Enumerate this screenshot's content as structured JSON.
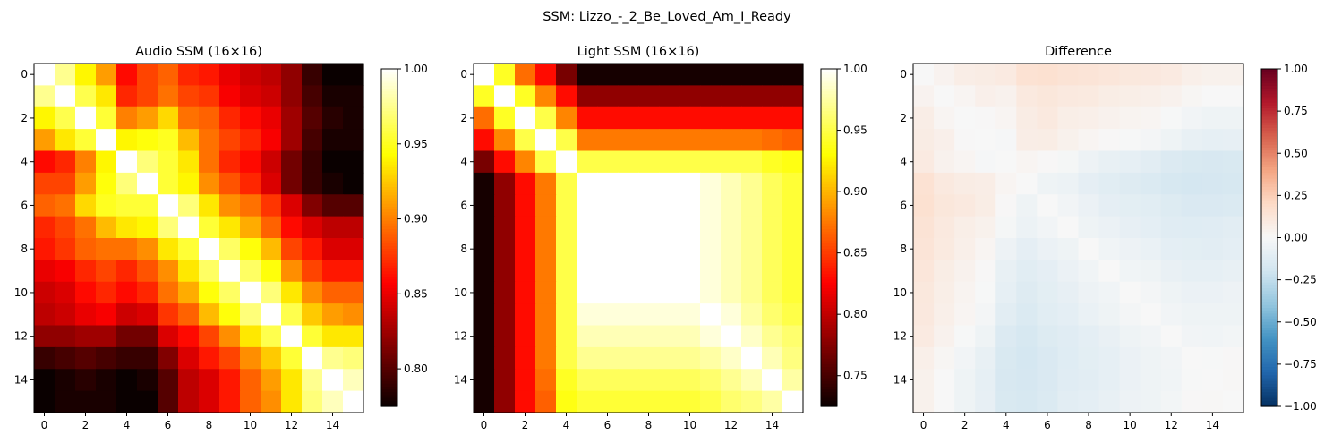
{
  "figure": {
    "suptitle": "SSM: Lizzo_-_2_Be_Loved_Am_I_Ready"
  },
  "chart_data": [
    {
      "type": "heatmap",
      "title": "Audio SSM (16×16)",
      "colormap": "hot",
      "vmin": 0.775,
      "vmax": 1.0,
      "x_ticks": [
        "0",
        "2",
        "4",
        "6",
        "8",
        "10",
        "12",
        "14"
      ],
      "y_ticks": [
        "0",
        "2",
        "4",
        "6",
        "8",
        "10",
        "12",
        "14"
      ],
      "colorbar_ticks": [
        "0.80",
        "0.85",
        "0.90",
        "0.95",
        "1.00"
      ],
      "values": [
        [
          1.0,
          0.975,
          0.94,
          0.91,
          0.86,
          0.88,
          0.89,
          0.87,
          0.865,
          0.85,
          0.84,
          0.835,
          0.82,
          0.79,
          0.775,
          0.775
        ],
        [
          0.975,
          1.0,
          0.96,
          0.935,
          0.87,
          0.88,
          0.895,
          0.88,
          0.875,
          0.855,
          0.845,
          0.84,
          0.82,
          0.795,
          0.78,
          0.78
        ],
        [
          0.94,
          0.96,
          1.0,
          0.955,
          0.9,
          0.91,
          0.93,
          0.895,
          0.89,
          0.87,
          0.86,
          0.85,
          0.825,
          0.8,
          0.785,
          0.78
        ],
        [
          0.91,
          0.935,
          0.955,
          1.0,
          0.94,
          0.945,
          0.95,
          0.92,
          0.895,
          0.88,
          0.87,
          0.855,
          0.825,
          0.795,
          0.78,
          0.78
        ],
        [
          0.86,
          0.87,
          0.9,
          0.94,
          1.0,
          0.97,
          0.955,
          0.935,
          0.895,
          0.87,
          0.86,
          0.84,
          0.81,
          0.79,
          0.775,
          0.775
        ],
        [
          0.88,
          0.88,
          0.91,
          0.945,
          0.97,
          1.0,
          0.955,
          0.94,
          0.905,
          0.885,
          0.87,
          0.845,
          0.81,
          0.79,
          0.78,
          0.775
        ],
        [
          0.89,
          0.895,
          0.93,
          0.95,
          0.955,
          0.955,
          1.0,
          0.97,
          0.935,
          0.905,
          0.895,
          0.875,
          0.845,
          0.815,
          0.8,
          0.8
        ],
        [
          0.87,
          0.88,
          0.895,
          0.92,
          0.935,
          0.94,
          0.97,
          1.0,
          0.955,
          0.935,
          0.915,
          0.89,
          0.86,
          0.845,
          0.835,
          0.835
        ],
        [
          0.865,
          0.875,
          0.89,
          0.895,
          0.895,
          0.905,
          0.935,
          0.955,
          1.0,
          0.965,
          0.945,
          0.92,
          0.88,
          0.865,
          0.845,
          0.845
        ],
        [
          0.85,
          0.855,
          0.87,
          0.88,
          0.87,
          0.885,
          0.905,
          0.935,
          0.965,
          1.0,
          0.965,
          0.945,
          0.905,
          0.88,
          0.865,
          0.865
        ],
        [
          0.84,
          0.845,
          0.86,
          0.87,
          0.86,
          0.87,
          0.895,
          0.915,
          0.945,
          0.965,
          1.0,
          0.97,
          0.935,
          0.905,
          0.89,
          0.89
        ],
        [
          0.835,
          0.84,
          0.85,
          0.855,
          0.84,
          0.845,
          0.875,
          0.89,
          0.92,
          0.945,
          0.97,
          1.0,
          0.96,
          0.925,
          0.91,
          0.905
        ],
        [
          0.82,
          0.82,
          0.825,
          0.825,
          0.81,
          0.81,
          0.845,
          0.86,
          0.88,
          0.905,
          0.935,
          0.96,
          1.0,
          0.955,
          0.935,
          0.935
        ],
        [
          0.79,
          0.795,
          0.8,
          0.795,
          0.79,
          0.79,
          0.815,
          0.845,
          0.865,
          0.88,
          0.905,
          0.925,
          0.955,
          1.0,
          0.975,
          0.97
        ],
        [
          0.775,
          0.78,
          0.785,
          0.78,
          0.775,
          0.78,
          0.8,
          0.835,
          0.845,
          0.865,
          0.89,
          0.91,
          0.935,
          0.975,
          1.0,
          0.985
        ],
        [
          0.775,
          0.78,
          0.78,
          0.78,
          0.775,
          0.775,
          0.8,
          0.835,
          0.845,
          0.865,
          0.89,
          0.905,
          0.935,
          0.97,
          0.985,
          1.0
        ]
      ]
    },
    {
      "type": "heatmap",
      "title": "Light SSM (16×16)",
      "colormap": "hot",
      "vmin": 0.725,
      "vmax": 1.0,
      "x_ticks": [
        "0",
        "2",
        "4",
        "6",
        "8",
        "10",
        "12",
        "14"
      ],
      "y_ticks": [
        "0",
        "2",
        "4",
        "6",
        "8",
        "10",
        "12",
        "14"
      ],
      "colorbar_ticks": [
        "0.75",
        "0.80",
        "0.85",
        "0.90",
        "0.95",
        "1.00"
      ],
      "values": [
        [
          1.0,
          0.94,
          0.87,
          0.83,
          0.77,
          0.73,
          0.73,
          0.73,
          0.73,
          0.73,
          0.73,
          0.73,
          0.73,
          0.73,
          0.73,
          0.73
        ],
        [
          0.94,
          1.0,
          0.94,
          0.88,
          0.83,
          0.78,
          0.78,
          0.78,
          0.78,
          0.78,
          0.78,
          0.78,
          0.78,
          0.78,
          0.78,
          0.78
        ],
        [
          0.87,
          0.94,
          1.0,
          0.95,
          0.88,
          0.83,
          0.83,
          0.83,
          0.83,
          0.83,
          0.83,
          0.83,
          0.83,
          0.83,
          0.83,
          0.83
        ],
        [
          0.83,
          0.88,
          0.95,
          1.0,
          0.95,
          0.875,
          0.875,
          0.875,
          0.875,
          0.875,
          0.875,
          0.875,
          0.875,
          0.875,
          0.87,
          0.865
        ],
        [
          0.77,
          0.83,
          0.88,
          0.95,
          1.0,
          0.95,
          0.95,
          0.95,
          0.95,
          0.95,
          0.95,
          0.95,
          0.95,
          0.95,
          0.94,
          0.935
        ],
        [
          0.73,
          0.78,
          0.83,
          0.875,
          0.95,
          1.0,
          1.0,
          1.0,
          1.0,
          1.0,
          1.0,
          0.99,
          0.98,
          0.97,
          0.955,
          0.945
        ],
        [
          0.73,
          0.78,
          0.83,
          0.875,
          0.95,
          1.0,
          1.0,
          1.0,
          1.0,
          1.0,
          1.0,
          0.99,
          0.98,
          0.97,
          0.955,
          0.945
        ],
        [
          0.73,
          0.78,
          0.83,
          0.875,
          0.95,
          1.0,
          1.0,
          1.0,
          1.0,
          1.0,
          1.0,
          0.99,
          0.98,
          0.97,
          0.955,
          0.945
        ],
        [
          0.73,
          0.78,
          0.83,
          0.875,
          0.95,
          1.0,
          1.0,
          1.0,
          1.0,
          1.0,
          1.0,
          0.99,
          0.98,
          0.97,
          0.955,
          0.945
        ],
        [
          0.73,
          0.78,
          0.83,
          0.875,
          0.95,
          1.0,
          1.0,
          1.0,
          1.0,
          1.0,
          1.0,
          0.99,
          0.98,
          0.97,
          0.955,
          0.945
        ],
        [
          0.73,
          0.78,
          0.83,
          0.875,
          0.95,
          1.0,
          1.0,
          1.0,
          1.0,
          1.0,
          1.0,
          0.99,
          0.98,
          0.97,
          0.955,
          0.945
        ],
        [
          0.73,
          0.78,
          0.83,
          0.875,
          0.95,
          0.99,
          0.99,
          0.99,
          0.99,
          0.99,
          0.99,
          1.0,
          0.99,
          0.975,
          0.96,
          0.95
        ],
        [
          0.73,
          0.78,
          0.83,
          0.875,
          0.95,
          0.98,
          0.98,
          0.98,
          0.98,
          0.98,
          0.98,
          0.99,
          1.0,
          0.985,
          0.97,
          0.96
        ],
        [
          0.73,
          0.78,
          0.83,
          0.875,
          0.95,
          0.97,
          0.97,
          0.97,
          0.97,
          0.97,
          0.97,
          0.975,
          0.985,
          1.0,
          0.98,
          0.965
        ],
        [
          0.73,
          0.78,
          0.83,
          0.87,
          0.94,
          0.955,
          0.955,
          0.955,
          0.955,
          0.955,
          0.955,
          0.96,
          0.97,
          0.98,
          1.0,
          0.975
        ],
        [
          0.73,
          0.78,
          0.83,
          0.865,
          0.935,
          0.945,
          0.945,
          0.945,
          0.945,
          0.945,
          0.945,
          0.95,
          0.96,
          0.965,
          0.975,
          1.0
        ]
      ]
    },
    {
      "type": "heatmap",
      "title": "Difference",
      "colormap": "RdBu_r",
      "vmin": -1.0,
      "vmax": 1.0,
      "x_ticks": [
        "0",
        "2",
        "4",
        "6",
        "8",
        "10",
        "12",
        "14"
      ],
      "y_ticks": [
        "0",
        "2",
        "4",
        "6",
        "8",
        "10",
        "12",
        "14"
      ],
      "colorbar_ticks": [
        "1.00",
        "0.75",
        "0.50",
        "0.25",
        "0.00",
        "−0.25",
        "−0.50",
        "−0.75",
        "−1.00"
      ],
      "values": [
        [
          0.0,
          0.035,
          0.07,
          0.08,
          0.09,
          0.15,
          0.16,
          0.14,
          0.135,
          0.12,
          0.11,
          0.105,
          0.09,
          0.06,
          0.045,
          0.045
        ],
        [
          0.035,
          0.0,
          0.02,
          0.055,
          0.04,
          0.1,
          0.115,
          0.1,
          0.095,
          0.075,
          0.065,
          0.06,
          0.04,
          0.015,
          0.0,
          0.0
        ],
        [
          0.07,
          0.02,
          0.0,
          0.005,
          0.02,
          0.08,
          0.1,
          0.065,
          0.06,
          0.04,
          0.03,
          0.02,
          -0.005,
          -0.03,
          -0.045,
          -0.05
        ],
        [
          0.08,
          0.055,
          0.005,
          0.0,
          -0.01,
          0.07,
          0.075,
          0.045,
          0.02,
          0.005,
          -0.005,
          -0.02,
          -0.05,
          -0.08,
          -0.09,
          -0.085
        ],
        [
          0.09,
          0.04,
          0.02,
          -0.01,
          0.0,
          0.02,
          0.005,
          -0.015,
          -0.055,
          -0.08,
          -0.09,
          -0.11,
          -0.14,
          -0.16,
          -0.165,
          -0.16
        ],
        [
          0.15,
          0.1,
          0.08,
          0.07,
          0.02,
          0.0,
          -0.045,
          -0.06,
          -0.095,
          -0.115,
          -0.13,
          -0.145,
          -0.17,
          -0.18,
          -0.175,
          -0.17
        ],
        [
          0.16,
          0.115,
          0.1,
          0.075,
          0.005,
          -0.045,
          0.0,
          -0.03,
          -0.065,
          -0.095,
          -0.105,
          -0.115,
          -0.135,
          -0.155,
          -0.155,
          -0.145
        ],
        [
          0.14,
          0.1,
          0.065,
          0.045,
          -0.015,
          -0.06,
          -0.03,
          0.0,
          -0.045,
          -0.065,
          -0.085,
          -0.1,
          -0.12,
          -0.125,
          -0.12,
          -0.11
        ],
        [
          0.135,
          0.095,
          0.06,
          0.02,
          -0.055,
          -0.095,
          -0.065,
          -0.045,
          0.0,
          -0.035,
          -0.055,
          -0.07,
          -0.1,
          -0.105,
          -0.11,
          -0.1
        ],
        [
          0.12,
          0.075,
          0.04,
          0.005,
          -0.08,
          -0.115,
          -0.095,
          -0.065,
          -0.035,
          0.0,
          -0.035,
          -0.045,
          -0.075,
          -0.09,
          -0.09,
          -0.08
        ],
        [
          0.11,
          0.065,
          0.03,
          -0.005,
          -0.09,
          -0.13,
          -0.105,
          -0.085,
          -0.055,
          -0.035,
          0.0,
          -0.02,
          -0.045,
          -0.065,
          -0.065,
          -0.055
        ],
        [
          0.105,
          0.06,
          0.02,
          -0.02,
          -0.11,
          -0.145,
          -0.115,
          -0.1,
          -0.07,
          -0.045,
          -0.02,
          0.0,
          -0.03,
          -0.05,
          -0.05,
          -0.045
        ],
        [
          0.09,
          0.04,
          -0.005,
          -0.05,
          -0.14,
          -0.17,
          -0.135,
          -0.12,
          -0.1,
          -0.075,
          -0.045,
          -0.03,
          0.0,
          -0.03,
          -0.035,
          -0.025
        ],
        [
          0.06,
          0.015,
          -0.03,
          -0.08,
          -0.16,
          -0.18,
          -0.155,
          -0.125,
          -0.105,
          -0.09,
          -0.065,
          -0.05,
          -0.03,
          0.0,
          -0.005,
          0.005
        ],
        [
          0.045,
          0.0,
          -0.045,
          -0.09,
          -0.165,
          -0.175,
          -0.155,
          -0.12,
          -0.11,
          -0.09,
          -0.065,
          -0.05,
          -0.035,
          -0.005,
          0.0,
          0.01
        ],
        [
          0.045,
          0.0,
          -0.05,
          -0.085,
          -0.16,
          -0.17,
          -0.145,
          -0.11,
          -0.1,
          -0.08,
          -0.055,
          -0.045,
          -0.025,
          0.005,
          0.01,
          0.0
        ]
      ]
    }
  ]
}
